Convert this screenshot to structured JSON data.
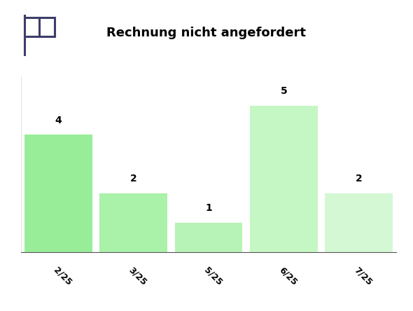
{
  "chart_data": {
    "type": "bar",
    "title": "Rechnung nicht angefordert",
    "categories": [
      "2/25",
      "3/25",
      "5/25",
      "6/25",
      "7/25"
    ],
    "values": [
      4,
      2,
      1,
      5,
      2
    ],
    "colors": [
      "#98ee98",
      "#aaf1aa",
      "#b7f3b7",
      "#c5f7c5",
      "#d4f8d4"
    ],
    "ylim": [
      0,
      6
    ],
    "yticks": [],
    "grid": false,
    "data_labels": true,
    "tick_labels": "x"
  }
}
